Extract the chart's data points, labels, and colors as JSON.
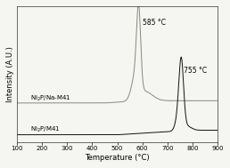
{
  "title": "",
  "xlabel": "Temperature (°C)",
  "ylabel": "Intensity (A.U.)",
  "xlim": [
    100,
    900
  ],
  "x_ticks": [
    100,
    200,
    300,
    400,
    500,
    600,
    700,
    800,
    900
  ],
  "label1": "Ni$_2$P/Na-M41",
  "label2": "Ni$_2$P/M41",
  "peak1_temp": 585,
  "peak1_label": "585 °C",
  "peak2_temp": 755,
  "peak2_label": "755 °C",
  "background_color": "#f5f5f2",
  "line_color1": "#888880",
  "line_color2": "#111111"
}
